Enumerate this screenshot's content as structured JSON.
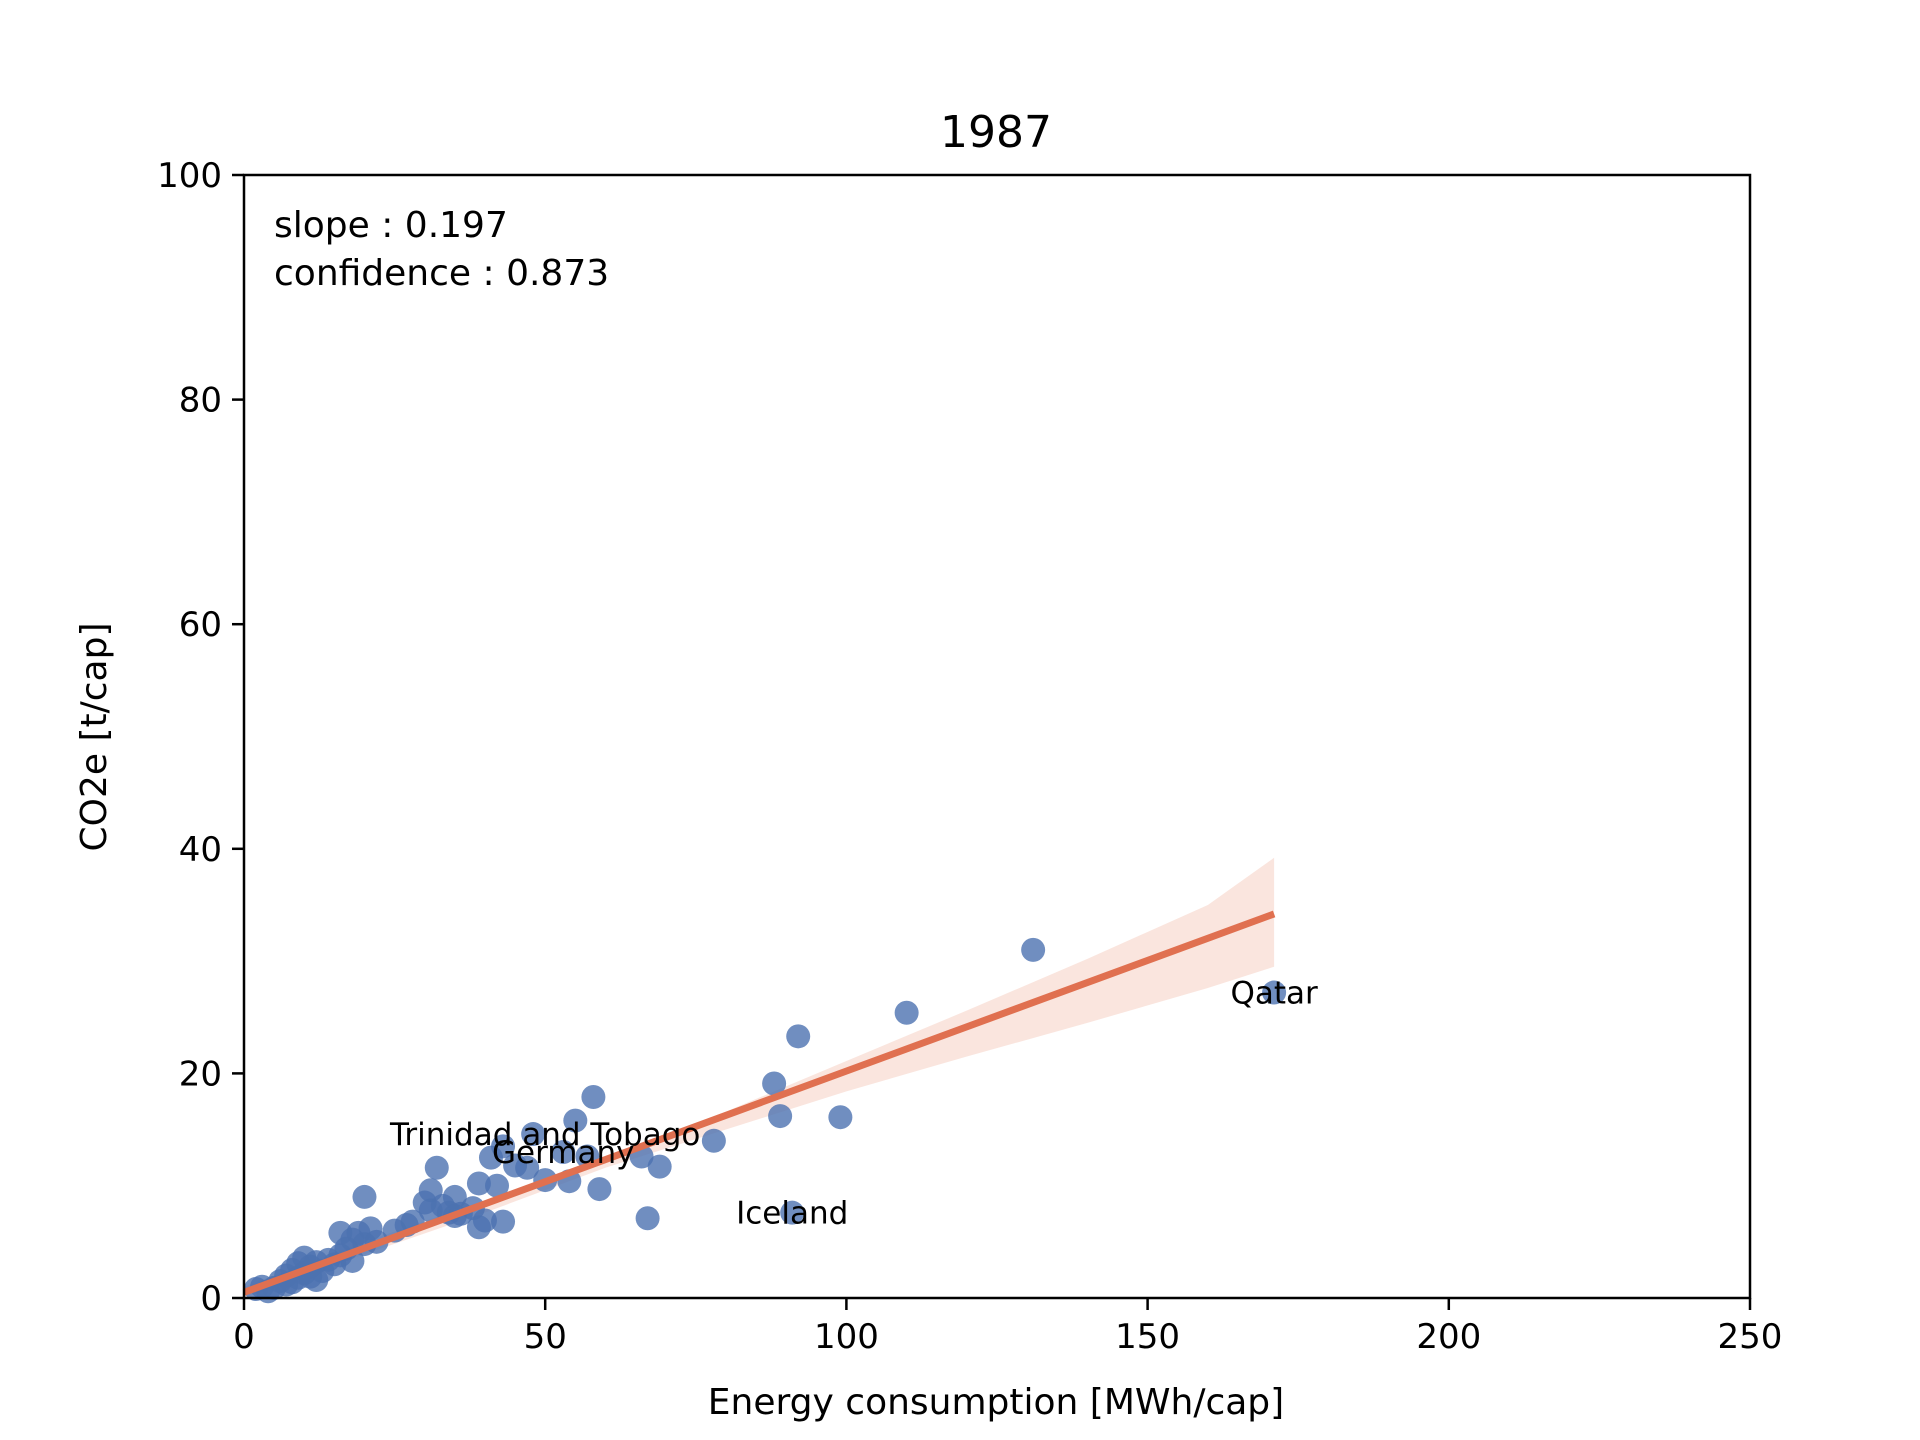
{
  "chart_data": {
    "type": "scatter",
    "title": "1987",
    "xlabel": "Energy consumption [MWh/cap]",
    "ylabel": "CO2e [t/cap]",
    "xlim": [
      0,
      250
    ],
    "ylim": [
      0,
      100
    ],
    "xticks": [
      0,
      50,
      100,
      150,
      200,
      250
    ],
    "yticks": [
      0,
      20,
      40,
      60,
      80,
      100
    ],
    "grid": false,
    "stats": {
      "slope": "slope : 0.197",
      "confidence": "confidence : 0.873"
    },
    "colors": {
      "points": "#4c72b0",
      "fit_line": "#e07050",
      "band": "#f7d4c8"
    },
    "points": [
      [
        2,
        0.8
      ],
      [
        3,
        1.0
      ],
      [
        4,
        0.6
      ],
      [
        5,
        0.9
      ],
      [
        6,
        1.5
      ],
      [
        7,
        1.2
      ],
      [
        7,
        2.0
      ],
      [
        8,
        1.4
      ],
      [
        8,
        2.5
      ],
      [
        9,
        1.8
      ],
      [
        9,
        3.1
      ],
      [
        10,
        2.2
      ],
      [
        10,
        3.6
      ],
      [
        11,
        1.9
      ],
      [
        11,
        2.8
      ],
      [
        12,
        1.6
      ],
      [
        12,
        3.2
      ],
      [
        13,
        2.4
      ],
      [
        14,
        3.4
      ],
      [
        15,
        3.0
      ],
      [
        16,
        3.8
      ],
      [
        16,
        5.8
      ],
      [
        17,
        4.4
      ],
      [
        18,
        3.3
      ],
      [
        18,
        5.2
      ],
      [
        19,
        5.8
      ],
      [
        20,
        4.8
      ],
      [
        20,
        9.0
      ],
      [
        21,
        6.2
      ],
      [
        22,
        5.0
      ],
      [
        25,
        6.0
      ],
      [
        27,
        6.5
      ],
      [
        28,
        6.8
      ],
      [
        30,
        8.5
      ],
      [
        31,
        7.8
      ],
      [
        31,
        9.6
      ],
      [
        32,
        11.6
      ],
      [
        33,
        8.2
      ],
      [
        34,
        7.6
      ],
      [
        35,
        7.3
      ],
      [
        35,
        9.0
      ],
      [
        36,
        7.5
      ],
      [
        38,
        8.0
      ],
      [
        39,
        10.2
      ],
      [
        39,
        6.3
      ],
      [
        40,
        6.9
      ],
      [
        41,
        12.5
      ],
      [
        42,
        10.0
      ],
      [
        43,
        6.8
      ],
      [
        43,
        13.5
      ],
      [
        45,
        11.8
      ],
      [
        47,
        11.6
      ],
      [
        48,
        14.6
      ],
      [
        50,
        10.5
      ],
      [
        53,
        13.0
      ],
      [
        54,
        10.4
      ],
      [
        55,
        15.8
      ],
      [
        57,
        12.6
      ],
      [
        58,
        17.9
      ],
      [
        59,
        9.7
      ],
      [
        66,
        12.6
      ],
      [
        67,
        7.1
      ],
      [
        69,
        11.7
      ],
      [
        78,
        14.0
      ],
      [
        88,
        19.1
      ],
      [
        89,
        16.2
      ],
      [
        91,
        7.6
      ],
      [
        92,
        23.3
      ],
      [
        99,
        16.1
      ],
      [
        110,
        25.4
      ],
      [
        131,
        31.0
      ],
      [
        171,
        27.2
      ]
    ],
    "fit": {
      "x": [
        0,
        171
      ],
      "y": [
        0.5,
        34.2
      ]
    },
    "band": {
      "x": [
        0,
        20,
        40,
        60,
        80,
        100,
        120,
        140,
        160,
        171
      ],
      "lower": [
        0.0,
        3.9,
        7.6,
        11.6,
        15.0,
        18.4,
        21.5,
        24.5,
        27.6,
        29.5
      ],
      "upper": [
        1.0,
        5.0,
        8.7,
        12.6,
        16.6,
        21.1,
        25.6,
        30.2,
        35.0,
        39.2
      ]
    },
    "annotations": [
      {
        "text": "Qatar",
        "x": 171,
        "y": 27.2
      },
      {
        "text": "Trinidad and Tobago",
        "x": 50,
        "y": 14.6
      },
      {
        "text": "Germany",
        "x": 53,
        "y": 13.0
      },
      {
        "text": "Iceland",
        "x": 91,
        "y": 7.6
      }
    ]
  }
}
